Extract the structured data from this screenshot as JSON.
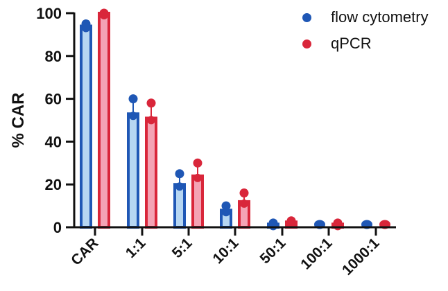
{
  "chart_data": {
    "type": "bar",
    "title": "",
    "xlabel": "",
    "ylabel": "% CAR",
    "ylim": [
      0,
      100
    ],
    "yticks": [
      0,
      20,
      40,
      60,
      80,
      100
    ],
    "categories": [
      "CAR",
      "1:1",
      "5:1",
      "10:1",
      "50:1",
      "100:1",
      "1000:1"
    ],
    "series": [
      {
        "name": "flow cytometry",
        "color": "#1f57b5",
        "fill": "#b6d6f2",
        "values": [
          94,
          53,
          20,
          8,
          1.5,
          0.5,
          0.3
        ],
        "error_upper": [
          95,
          60,
          25,
          10,
          2,
          0.7,
          0.5
        ]
      },
      {
        "name": "qPCR",
        "color": "#d9263a",
        "fill": "#f4a3b4",
        "values": [
          100,
          51,
          24,
          12,
          2.5,
          1.5,
          0.3
        ],
        "error_upper": [
          100,
          58,
          30,
          16,
          3,
          2,
          0.4
        ]
      }
    ],
    "legend_position": "top-right",
    "grid": false
  }
}
